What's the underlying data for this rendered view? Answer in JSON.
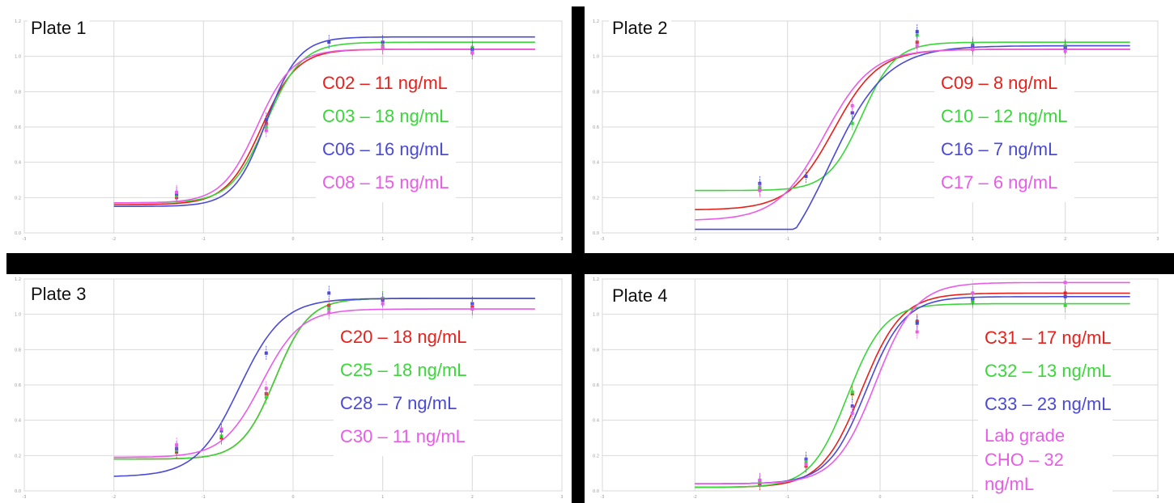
{
  "chart_data": [
    {
      "type": "line",
      "title": "Plate 1",
      "xlim": [
        -3,
        3
      ],
      "ylim": [
        0,
        1.2
      ],
      "x_ticks": [
        -3,
        -2,
        -1,
        0,
        1,
        2,
        3
      ],
      "y_ticks": [
        0,
        0.2,
        0.4,
        0.6,
        0.8,
        1.0,
        1.2
      ],
      "grid": true,
      "legend_position": "right",
      "series": [
        {
          "name": "C02 – 11 ng/mL",
          "color": "#e8201c",
          "bottom": 0.16,
          "top": 1.04,
          "ec50": -0.35,
          "hill": 2.2,
          "points": [
            {
              "x": -1.3,
              "y": 0.2
            },
            {
              "x": -0.3,
              "y": 0.62
            },
            {
              "x": 1.0,
              "y": 1.05
            },
            {
              "x": 2.0,
              "y": 1.02
            }
          ]
        },
        {
          "name": "C03 – 18 ng/mL",
          "color": "#3ad63a",
          "bottom": 0.17,
          "top": 1.08,
          "ec50": -0.3,
          "hill": 2.2,
          "points": [
            {
              "x": -1.3,
              "y": 0.21
            },
            {
              "x": -0.3,
              "y": 0.6
            },
            {
              "x": 1.0,
              "y": 1.06
            },
            {
              "x": 2.0,
              "y": 1.05
            }
          ]
        },
        {
          "name": "C06 – 16 ng/mL",
          "color": "#4a4ad6",
          "bottom": 0.15,
          "top": 1.11,
          "ec50": -0.3,
          "hill": 2.4,
          "points": [
            {
              "x": -1.3,
              "y": 0.22
            },
            {
              "x": -0.3,
              "y": 0.64
            },
            {
              "x": 0.4,
              "y": 1.08
            },
            {
              "x": 1.0,
              "y": 1.08
            },
            {
              "x": 2.0,
              "y": 1.04
            }
          ]
        },
        {
          "name": "C08 – 15 ng/mL",
          "color": "#e85ce8",
          "bottom": 0.17,
          "top": 1.04,
          "ec50": -0.4,
          "hill": 2.2,
          "points": [
            {
              "x": -1.3,
              "y": 0.23
            },
            {
              "x": -0.3,
              "y": 0.58
            },
            {
              "x": 1.0,
              "y": 1.05
            },
            {
              "x": 2.0,
              "y": 1.02
            }
          ]
        }
      ]
    },
    {
      "type": "line",
      "title": "Plate 2",
      "xlim": [
        -3,
        3
      ],
      "ylim": [
        0,
        1.2
      ],
      "x_ticks": [
        -3,
        -2,
        -1,
        0,
        1,
        2,
        3
      ],
      "y_ticks": [
        0,
        0.2,
        0.4,
        0.6,
        0.8,
        1.0,
        1.2
      ],
      "grid": true,
      "legend_position": "right",
      "series": [
        {
          "name": "C09 – 8 ng/mL",
          "color": "#e8201c",
          "bottom": 0.13,
          "top": 1.04,
          "ec50": -0.5,
          "hill": 1.8,
          "points": [
            {
              "x": -1.3,
              "y": 0.25
            },
            {
              "x": -0.3,
              "y": 0.68
            },
            {
              "x": 0.4,
              "y": 1.08
            },
            {
              "x": 1.0,
              "y": 1.05
            },
            {
              "x": 2.0,
              "y": 1.05
            }
          ]
        },
        {
          "name": "C10 – 12 ng/mL",
          "color": "#3ad63a",
          "bottom": 0.24,
          "top": 1.08,
          "ec50": -0.2,
          "hill": 2.4,
          "points": [
            {
              "x": -1.3,
              "y": 0.26
            },
            {
              "x": -0.3,
              "y": 0.62
            },
            {
              "x": 0.4,
              "y": 1.12
            },
            {
              "x": 1.0,
              "y": 1.07
            },
            {
              "x": 2.0,
              "y": 1.06
            }
          ]
        },
        {
          "name": "C16 – 7 ng/mL",
          "color": "#4a4ad6",
          "bottom": -0.3,
          "top": 1.06,
          "ec50": -0.55,
          "hill": 1.4,
          "points": [
            {
              "x": -1.3,
              "y": 0.28
            },
            {
              "x": -0.8,
              "y": 0.32
            },
            {
              "x": -0.3,
              "y": 0.68
            },
            {
              "x": 0.4,
              "y": 1.14
            },
            {
              "x": 1.0,
              "y": 1.06
            },
            {
              "x": 2.0,
              "y": 1.05
            }
          ]
        },
        {
          "name": "C17 – 6 ng/mL",
          "color": "#e85ce8",
          "bottom": 0.07,
          "top": 1.04,
          "ec50": -0.6,
          "hill": 1.7,
          "points": [
            {
              "x": -1.3,
              "y": 0.24
            },
            {
              "x": -0.3,
              "y": 0.72
            },
            {
              "x": 0.4,
              "y": 1.06
            },
            {
              "x": 1.0,
              "y": 1.04
            },
            {
              "x": 2.0,
              "y": 1.03
            }
          ]
        }
      ]
    },
    {
      "type": "line",
      "title": "Plate 3",
      "xlim": [
        -3,
        3
      ],
      "ylim": [
        0,
        1.2
      ],
      "x_ticks": [
        -3,
        -2,
        -1,
        0,
        1,
        2,
        3
      ],
      "y_ticks": [
        0,
        0.2,
        0.4,
        0.6,
        0.8,
        1.0,
        1.2
      ],
      "grid": true,
      "legend_position": "right",
      "series": [
        {
          "name": "C20 – 18 ng/mL",
          "color": "#e8201c",
          "bottom": 0.18,
          "top": 1.09,
          "ec50": -0.2,
          "hill": 2.3,
          "points": [
            {
              "x": -1.3,
              "y": 0.22
            },
            {
              "x": -0.8,
              "y": 0.3
            },
            {
              "x": -0.3,
              "y": 0.55
            },
            {
              "x": 0.4,
              "y": 1.05
            },
            {
              "x": 1.0,
              "y": 1.09
            },
            {
              "x": 2.0,
              "y": 1.04
            }
          ]
        },
        {
          "name": "C25 – 18 ng/mL",
          "color": "#3ad63a",
          "bottom": 0.18,
          "top": 1.09,
          "ec50": -0.2,
          "hill": 2.3,
          "points": [
            {
              "x": -1.3,
              "y": 0.23
            },
            {
              "x": -0.8,
              "y": 0.31
            },
            {
              "x": -0.3,
              "y": 0.53
            },
            {
              "x": 0.4,
              "y": 1.03
            },
            {
              "x": 1.0,
              "y": 1.09
            },
            {
              "x": 2.0,
              "y": 1.06
            }
          ]
        },
        {
          "name": "C28 – 7 ng/mL",
          "color": "#4a4ad6",
          "bottom": 0.08,
          "top": 1.09,
          "ec50": -0.6,
          "hill": 1.8,
          "points": [
            {
              "x": -1.3,
              "y": 0.24
            },
            {
              "x": -0.8,
              "y": 0.34
            },
            {
              "x": -0.3,
              "y": 0.78
            },
            {
              "x": 0.4,
              "y": 1.12
            },
            {
              "x": 1.0,
              "y": 1.08
            },
            {
              "x": 2.0,
              "y": 1.06
            }
          ]
        },
        {
          "name": "C30 – 11 ng/mL",
          "color": "#e85ce8",
          "bottom": 0.19,
          "top": 1.03,
          "ec50": -0.35,
          "hill": 2.0,
          "points": [
            {
              "x": -1.3,
              "y": 0.26
            },
            {
              "x": -0.8,
              "y": 0.35
            },
            {
              "x": -0.3,
              "y": 0.58
            },
            {
              "x": 0.4,
              "y": 1.01
            },
            {
              "x": 1.0,
              "y": 1.06
            },
            {
              "x": 2.0,
              "y": 1.03
            }
          ]
        }
      ]
    },
    {
      "type": "line",
      "title": "Plate 4",
      "xlim": [
        -3,
        3
      ],
      "ylim": [
        0,
        1.2
      ],
      "x_ticks": [
        -3,
        -2,
        -1,
        0,
        1,
        2,
        3
      ],
      "y_ticks": [
        0,
        0.2,
        0.4,
        0.6,
        0.8,
        1.0,
        1.2
      ],
      "grid": true,
      "legend_position": "right",
      "series": [
        {
          "name": "C31 – 17 ng/mL",
          "color": "#e8201c",
          "bottom": 0.02,
          "top": 1.12,
          "ec50": -0.2,
          "hill": 2.0,
          "points": [
            {
              "x": -1.3,
              "y": 0.04
            },
            {
              "x": -0.8,
              "y": 0.14
            },
            {
              "x": -0.3,
              "y": 0.55
            },
            {
              "x": 0.4,
              "y": 0.96
            },
            {
              "x": 1.0,
              "y": 1.08
            },
            {
              "x": 2.0,
              "y": 1.12
            }
          ]
        },
        {
          "name": "C32 – 13 ng/mL",
          "color": "#3ad63a",
          "bottom": 0.02,
          "top": 1.06,
          "ec50": -0.35,
          "hill": 2.2,
          "points": [
            {
              "x": -1.3,
              "y": 0.05
            },
            {
              "x": -0.8,
              "y": 0.16
            },
            {
              "x": -0.3,
              "y": 0.56
            },
            {
              "x": 0.4,
              "y": 0.95
            },
            {
              "x": 1.0,
              "y": 1.07
            },
            {
              "x": 2.0,
              "y": 1.05
            }
          ]
        },
        {
          "name": "C33 – 23 ng/mL",
          "color": "#4a4ad6",
          "bottom": 0.04,
          "top": 1.1,
          "ec50": -0.15,
          "hill": 2.1,
          "points": [
            {
              "x": -1.3,
              "y": 0.06
            },
            {
              "x": -0.8,
              "y": 0.18
            },
            {
              "x": -0.3,
              "y": 0.48
            },
            {
              "x": 0.4,
              "y": 0.95
            },
            {
              "x": 1.0,
              "y": 1.09
            },
            {
              "x": 2.0,
              "y": 1.1
            }
          ]
        },
        {
          "name": "Lab grade CHO – 32 ng/mL",
          "color": "#e85ce8",
          "bottom": 0.04,
          "top": 1.18,
          "ec50": -0.05,
          "hill": 2.0,
          "points": [
            {
              "x": -1.3,
              "y": 0.06
            },
            {
              "x": -0.8,
              "y": 0.15
            },
            {
              "x": -0.3,
              "y": 0.44
            },
            {
              "x": 0.4,
              "y": 0.9
            },
            {
              "x": 1.0,
              "y": 1.12
            },
            {
              "x": 2.0,
              "y": 1.18
            }
          ]
        }
      ]
    }
  ]
}
